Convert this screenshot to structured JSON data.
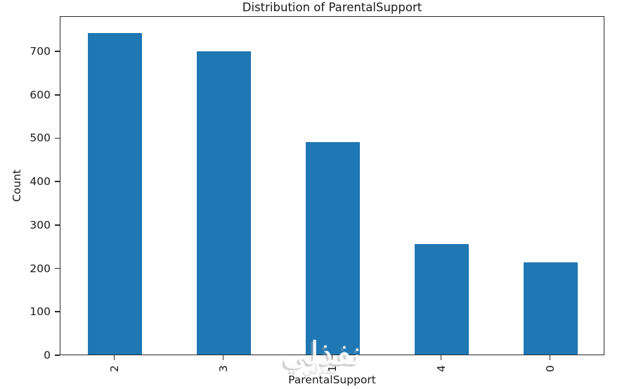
{
  "watermark": {
    "text": "نفذلي"
  },
  "chart_data": {
    "type": "bar",
    "title": "Distribution of ParentalSupport",
    "xlabel": "ParentalSupport",
    "ylabel": "Count",
    "categories": [
      "2",
      "3",
      "1",
      "4",
      "0"
    ],
    "values": [
      740,
      698,
      489,
      254,
      212
    ],
    "ylim": [
      0,
      781
    ],
    "yticks": [
      0,
      100,
      200,
      300,
      400,
      500,
      600,
      700
    ],
    "bar_color": "#1f77b4",
    "bar_width_fraction": 0.5,
    "xtick_rotation_deg": 90,
    "grid": false,
    "legend_position": "none",
    "axis_color": "#2b2b2b",
    "text_color": "#1a1a1a"
  }
}
